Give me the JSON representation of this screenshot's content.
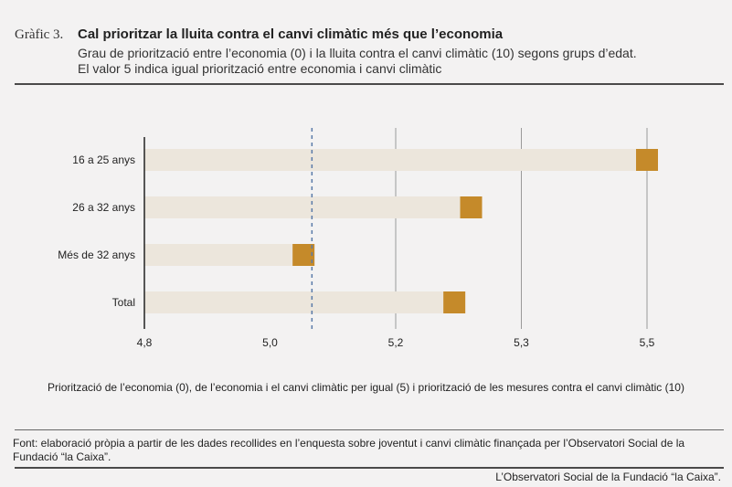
{
  "header": {
    "figure_label": "Gràfic 3.",
    "title": "Cal prioritzar la lluita contra el canvi climàtic més que l’economia",
    "subtitle_line1": "Grau de priorització entre l’economia (0) i la lluita contra el canvi climàtic (10) segons grups d’edat.",
    "subtitle_line2": "El valor 5 indica igual priorització entre economia i canvi climàtic"
  },
  "chart_data": {
    "type": "bar",
    "orientation": "horizontal",
    "categories": [
      "16 a 25 anys",
      "26 a 32 anys",
      "Més de 32 anys",
      "Total"
    ],
    "values": [
      5.4,
      5.19,
      4.99,
      5.17
    ],
    "xlim": [
      4.8,
      5.4
    ],
    "x_tick_labels": [
      "4,8",
      "5,0",
      "5,2",
      "5,3",
      "5,5"
    ],
    "reference_value": 5.0,
    "reference_style": "dashed",
    "xlabel": "Priorització de l’economia (0), de l’economia i el canvi climàtic per igual (5) i priorització de les mesures contra el canvi climàtic (10)",
    "colors": {
      "bar": "#ece6dc",
      "marker": "#c58a2a",
      "reference": "#5a7aa8",
      "grid": "#9a9a9a"
    }
  },
  "source": "Font: elaboració pròpia a partir de les dades recollides en l’enquesta sobre joventut i canvi climàtic  finançada per l’Observatori Social de la Fundació “la Caixa”.",
  "footer": "L’Observatori Social de la Fundació “la Caixa”."
}
